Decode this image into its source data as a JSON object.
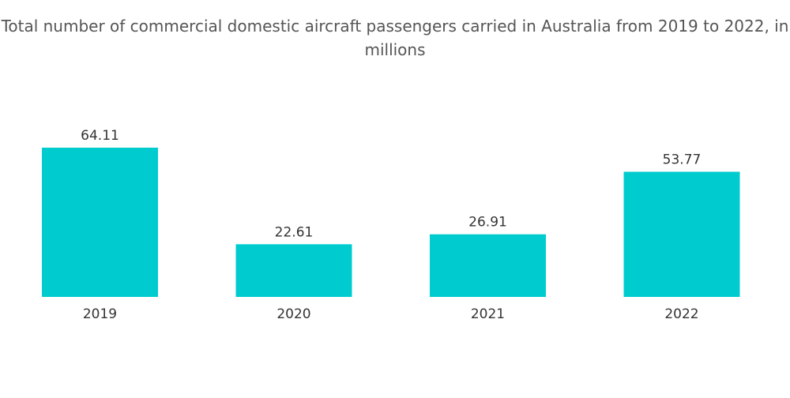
{
  "chart_data": {
    "type": "bar",
    "title": "Total number of commercial domestic aircraft passengers carried in Australia from 2019 to 2022, in millions",
    "categories": [
      "2019",
      "2020",
      "2021",
      "2022"
    ],
    "values": [
      64.11,
      22.61,
      26.91,
      53.77
    ],
    "value_labels": [
      "64.11",
      "22.61",
      "26.91",
      "53.77"
    ],
    "xlabel": "",
    "ylabel": "",
    "ylim": [
      0,
      64.11
    ],
    "grid": false,
    "legend": "none",
    "bar_color": "#00ccd0"
  }
}
